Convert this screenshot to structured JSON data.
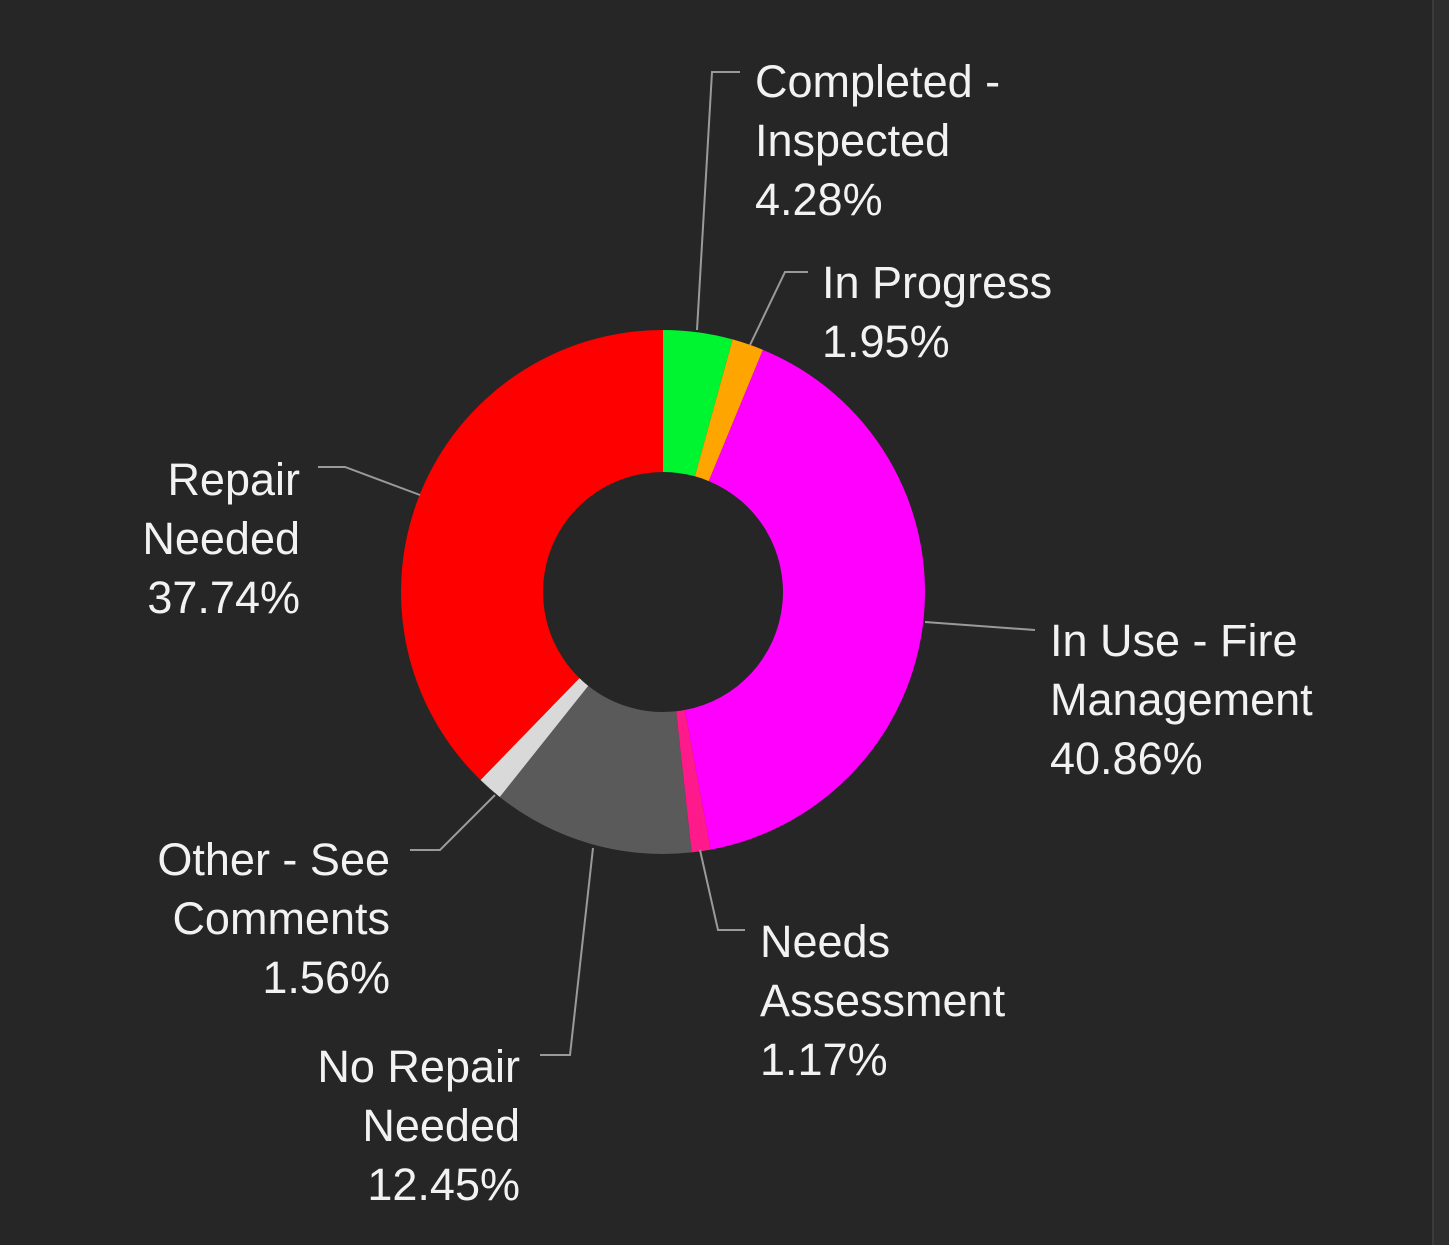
{
  "chart_data": {
    "type": "donut",
    "categories": [
      "Completed - Inspected",
      "In Progress",
      "In Use - Fire Management",
      "Needs Assessment",
      "No Repair Needed",
      "Other - See Comments",
      "Repair Needed"
    ],
    "values": [
      4.28,
      1.95,
      40.86,
      1.17,
      12.45,
      1.56,
      37.74
    ],
    "value_labels": [
      "4.28%",
      "1.95%",
      "40.86%",
      "1.17%",
      "12.45%",
      "1.56%",
      "37.74%"
    ],
    "colors": [
      "#00f531",
      "#ffa500",
      "#ff00ff",
      "#ff1a8c",
      "#5a5a5a",
      "#d9d9d9",
      "#ff0000"
    ]
  }
}
